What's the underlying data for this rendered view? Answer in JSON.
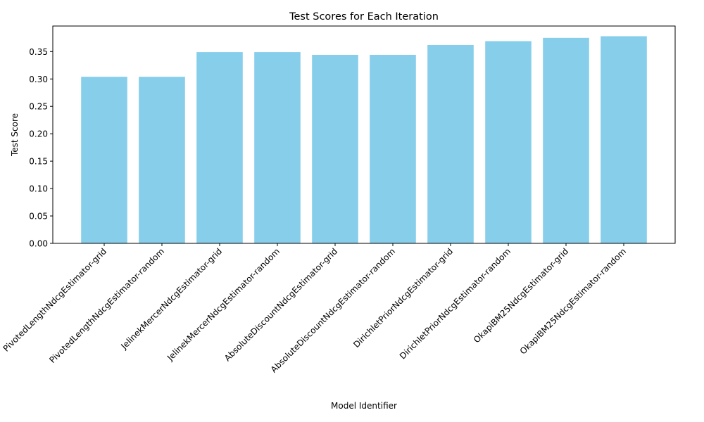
{
  "chart_data": {
    "type": "bar",
    "title": "Test Scores for Each Iteration",
    "xlabel": "Model Identifier",
    "ylabel": "Test Score",
    "categories": [
      "PivotedLengthNdcgEstimator-grid",
      "PivotedLengthNdcgEstimator-random",
      "JelinekMercerNdcgEstimator-grid",
      "JelinekMercerNdcgEstimator-random",
      "AbsoluteDiscountNdcgEstimator-grid",
      "AbsoluteDiscountNdcgEstimator-random",
      "DirichletPriorNdcgEstimator-grid",
      "DirichletPriorNdcgEstimator-random",
      "OkapiBM25NdcgEstimator-grid",
      "OkapiBM25NdcgEstimator-random"
    ],
    "values": [
      0.304,
      0.304,
      0.349,
      0.349,
      0.344,
      0.344,
      0.362,
      0.369,
      0.375,
      0.378
    ],
    "ylim": [
      0,
      0.3966
    ],
    "yticks": [
      "0.00",
      "0.05",
      "0.10",
      "0.15",
      "0.20",
      "0.25",
      "0.30",
      "0.35"
    ],
    "bar_color": "#87CEEB",
    "grid": false,
    "legend": "none"
  }
}
